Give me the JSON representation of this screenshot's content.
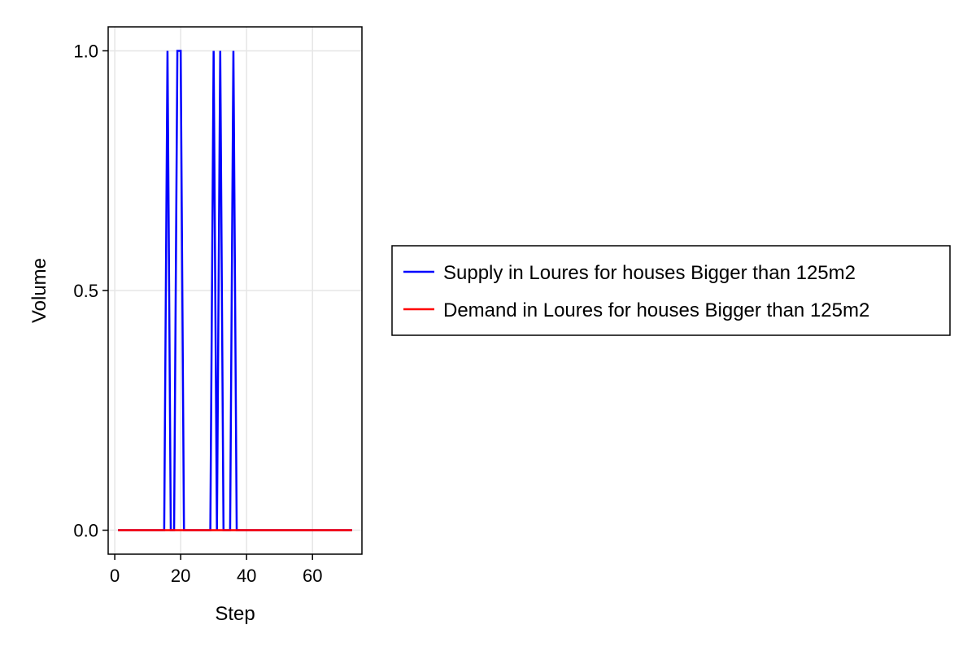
{
  "chart_data": {
    "type": "line",
    "xlabel": "Step",
    "ylabel": "Volume",
    "xlim": [
      -2,
      75
    ],
    "ylim": [
      -0.05,
      1.05
    ],
    "x_ticks": [
      0,
      20,
      40,
      60
    ],
    "x_tick_labels": [
      "0",
      "20",
      "40",
      "60"
    ],
    "y_ticks": [
      0.0,
      0.5,
      1.0
    ],
    "y_tick_labels": [
      "0.0",
      "0.5",
      "1.0"
    ],
    "grid": true,
    "legend_position": "right",
    "series": [
      {
        "name": "Supply in Loures for houses Bigger than 125m2",
        "color": "#0000ff",
        "x": [
          1,
          15,
          16,
          17,
          18,
          19,
          20,
          21,
          22,
          29,
          30,
          31,
          32,
          33,
          34,
          35,
          36,
          37,
          38,
          72
        ],
        "y": [
          0,
          0,
          1,
          0,
          0,
          1,
          1,
          0,
          0,
          0,
          1,
          0,
          1,
          0,
          0,
          0,
          1,
          0,
          0,
          0
        ]
      },
      {
        "name": "Demand in Loures for houses Bigger than 125m2",
        "color": "#ff0000",
        "x": [
          1,
          72
        ],
        "y": [
          0,
          0
        ]
      }
    ]
  }
}
